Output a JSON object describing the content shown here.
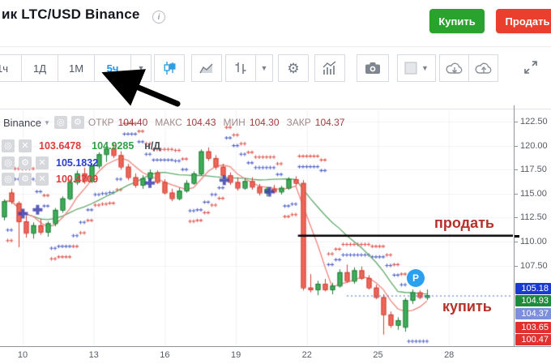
{
  "header": {
    "title": "ик LTC/USD Binance",
    "info_icon": "i",
    "buy_label": "Купить",
    "sell_label": "Продать"
  },
  "toolbar": {
    "timeframes": [
      "1ч",
      "1Д",
      "1М",
      "5ч"
    ],
    "active_timeframe": "5ч"
  },
  "legend": {
    "exchange": "Binance",
    "ohlc": [
      {
        "label": "ОТКР",
        "value": "104.40"
      },
      {
        "label": "МАКС",
        "value": "104.43"
      },
      {
        "label": "МИН",
        "value": "104.30"
      },
      {
        "label": "ЗАКР",
        "value": "104.37"
      }
    ]
  },
  "indicators": [
    {
      "values": [
        {
          "text": "103.6478",
          "color": "#e03b3b"
        },
        {
          "text": "104.9285",
          "color": "#2f9e44"
        },
        {
          "text": "н/Д",
          "color": "#4a4e57"
        }
      ]
    },
    {
      "values": [
        {
          "text": "105.1832",
          "color": "#2c3ccf"
        }
      ]
    },
    {
      "values": [
        {
          "text": "100.4709",
          "color": "#e03b3b"
        }
      ]
    }
  ],
  "chart_data": {
    "type": "candlestick",
    "symbol": "LTC/USD Binance",
    "timeframe": "5ч",
    "x_ticks": [
      "10",
      "13",
      "16",
      "19",
      "22",
      "25",
      "28"
    ],
    "y_ticks": [
      "122.50",
      "120.00",
      "117.50",
      "115.00",
      "112.50",
      "110.00",
      "107.50"
    ],
    "ylim": [
      99.0,
      124.4
    ],
    "grid": true,
    "current_price": 104.37,
    "price_labels": [
      {
        "value": "105.18",
        "bg": "#1b3bd0"
      },
      {
        "value": "104.93",
        "bg": "#1e8a3c"
      },
      {
        "value": "104.37",
        "bg": "#7d8edb"
      },
      {
        "value": "103.65",
        "bg": "#e22f2f"
      },
      {
        "value": "100.47",
        "bg": "#e22f2f"
      }
    ],
    "candles": [
      [
        112.6,
        114.4,
        112.2,
        114.2
      ],
      [
        115.1,
        115.5,
        113.9,
        114.2
      ],
      [
        114.0,
        114.2,
        109.4,
        112.1
      ],
      [
        112.1,
        112.7,
        110.4,
        110.9
      ],
      [
        110.9,
        112.0,
        110.3,
        111.7
      ],
      [
        111.7,
        112.4,
        110.7,
        111.0
      ],
      [
        111.0,
        112.1,
        110.5,
        111.9
      ],
      [
        111.9,
        113.5,
        111.6,
        113.3
      ],
      [
        113.3,
        114.7,
        113.0,
        114.5
      ],
      [
        114.5,
        116.5,
        114.3,
        116.2
      ],
      [
        116.2,
        117.4,
        115.9,
        117.1
      ],
      [
        117.1,
        117.7,
        116.0,
        116.3
      ],
      [
        116.3,
        118.1,
        116.1,
        117.9
      ],
      [
        117.9,
        119.3,
        117.6,
        119.1
      ],
      [
        119.1,
        120.0,
        118.3,
        119.7
      ],
      [
        119.7,
        120.2,
        118.7,
        119.0
      ],
      [
        119.0,
        119.4,
        117.5,
        117.8
      ],
      [
        117.8,
        118.1,
        116.4,
        116.7
      ],
      [
        116.7,
        117.1,
        115.6,
        115.9
      ],
      [
        115.9,
        116.9,
        115.5,
        116.6
      ],
      [
        116.6,
        117.5,
        116.3,
        117.2
      ],
      [
        117.2,
        117.4,
        116.0,
        116.2
      ],
      [
        116.2,
        116.5,
        114.9,
        115.1
      ],
      [
        115.1,
        115.5,
        114.2,
        114.5
      ],
      [
        114.5,
        115.6,
        114.3,
        115.3
      ],
      [
        115.3,
        116.4,
        115.1,
        116.1
      ],
      [
        116.1,
        117.3,
        115.9,
        117.1
      ],
      [
        117.1,
        119.6,
        116.9,
        119.4
      ],
      [
        119.4,
        119.8,
        118.4,
        118.7
      ],
      [
        118.7,
        119.0,
        117.5,
        117.8
      ],
      [
        117.8,
        118.1,
        116.6,
        116.9
      ],
      [
        116.9,
        117.2,
        115.9,
        116.2
      ],
      [
        116.2,
        116.7,
        115.3,
        115.6
      ],
      [
        115.6,
        116.6,
        115.4,
        116.3
      ],
      [
        116.3,
        116.7,
        115.4,
        115.7
      ],
      [
        115.7,
        116.0,
        114.8,
        115.1
      ],
      [
        115.1,
        115.7,
        114.7,
        115.5
      ],
      [
        115.5,
        115.9,
        115.0,
        115.2
      ],
      [
        115.2,
        115.8,
        114.9,
        115.6
      ],
      [
        115.6,
        116.7,
        115.4,
        116.5
      ],
      [
        116.5,
        116.8,
        115.8,
        116.1
      ],
      [
        116.1,
        116.4,
        104.9,
        105.2
      ],
      [
        105.2,
        106.6,
        104.7,
        105.0
      ],
      [
        105.0,
        105.9,
        104.4,
        105.6
      ],
      [
        105.6,
        106.1,
        104.8,
        105.0
      ],
      [
        105.0,
        105.7,
        104.5,
        105.4
      ],
      [
        105.4,
        107.1,
        105.2,
        106.8
      ],
      [
        106.8,
        107.6,
        105.7,
        105.9
      ],
      [
        105.9,
        107.3,
        105.6,
        107.0
      ],
      [
        107.0,
        107.4,
        106.0,
        106.2
      ],
      [
        106.2,
        106.5,
        105.0,
        105.2
      ],
      [
        105.2,
        105.5,
        104.0,
        104.2
      ],
      [
        104.2,
        104.5,
        100.3,
        102.4
      ],
      [
        102.4,
        102.7,
        101.0,
        101.3
      ],
      [
        101.3,
        102.1,
        100.8,
        101.8
      ],
      [
        101.1,
        104.1,
        100.6,
        103.9
      ],
      [
        103.9,
        105.0,
        103.5,
        104.7
      ],
      [
        104.7,
        104.9,
        104.0,
        104.2
      ],
      [
        104.2,
        105.0,
        103.9,
        104.4
      ]
    ],
    "signal_crosses": [
      {
        "i": 2.6,
        "p": 112.9
      },
      {
        "i": 4.6,
        "p": 113.3
      },
      {
        "i": 20.0,
        "p": 116.1
      },
      {
        "i": 30.2,
        "p": 116.4
      },
      {
        "i": 36.4,
        "p": 115.2
      }
    ],
    "annotations": {
      "sell_label": "продать",
      "sell_line_price": 110.6,
      "sell_line_start_i": 40.3,
      "buy_label": "купить",
      "p_marker": {
        "label": "P",
        "i": 56.4,
        "p": 106.2
      }
    },
    "colors": {
      "up_fill": "#3fae58",
      "up_border": "#1f7a38",
      "down_fill": "#ec665b",
      "down_border": "#cf4237",
      "ma_fast": "#f0837c",
      "ma_slow": "#61a96a",
      "sar_blue": "#5668c9",
      "sar_red": "#e05a52",
      "signal_cross": "#3d3fae",
      "sell_line": "#000000",
      "price_line": "#4a6fc0",
      "grid": "#f0f2f6"
    }
  }
}
